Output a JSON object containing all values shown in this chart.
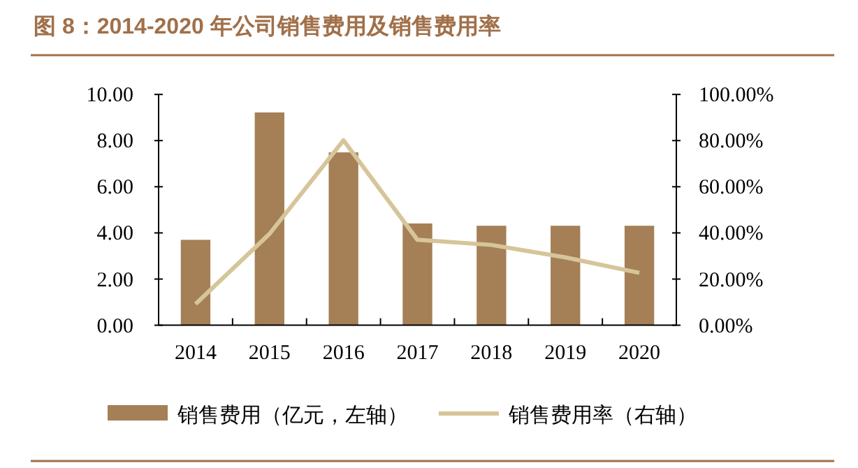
{
  "chart_data": {
    "type": "bar",
    "title": "图 8：2014-2020 年公司销售费用及销售费用率",
    "categories": [
      "2014",
      "2015",
      "2016",
      "2017",
      "2018",
      "2019",
      "2020"
    ],
    "series": [
      {
        "name": "销售费用（亿元，左轴）",
        "color": "#a57f55",
        "values": [
          3.7,
          9.22,
          7.49,
          4.41,
          4.31,
          4.31,
          4.31
        ]
      },
      {
        "name": "销售费用率（右轴）",
        "type": "line",
        "axis": "y2",
        "color": "#d6c59a",
        "values": [
          9.2,
          39.6,
          80.1,
          37.0,
          34.8,
          29.4,
          22.7
        ]
      }
    ],
    "ylim": [
      0,
      10
    ],
    "yticks": [
      {
        "value": 0,
        "label": "0.00"
      },
      {
        "value": 2,
        "label": "2.00"
      },
      {
        "value": 4,
        "label": "4.00"
      },
      {
        "value": 6,
        "label": "6.00"
      },
      {
        "value": 8,
        "label": "8.00"
      },
      {
        "value": 10,
        "label": "10.00"
      }
    ],
    "y2lim": [
      0,
      100
    ],
    "y2ticks": [
      {
        "value": 0,
        "label": "0.00%"
      },
      {
        "value": 20,
        "label": "20.00%"
      },
      {
        "value": 40,
        "label": "40.00%"
      },
      {
        "value": 60,
        "label": "60.00%"
      },
      {
        "value": 80,
        "label": "80.00%"
      },
      {
        "value": 100,
        "label": "100.00%"
      }
    ],
    "grid": false,
    "legend": "bottom",
    "marker": "none"
  }
}
